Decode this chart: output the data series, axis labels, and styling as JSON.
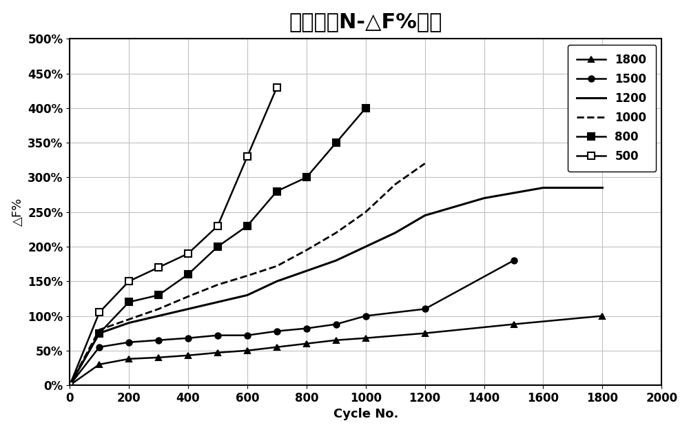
{
  "title": "标准样品N-△F%趋势",
  "xlabel": "Cycle No.",
  "ylabel": "△F%",
  "xlim": [
    0,
    2000
  ],
  "ylim": [
    0,
    5.0
  ],
  "ytick_labels": [
    "0%",
    "50%",
    "100%",
    "150%",
    "200%",
    "250%",
    "300%",
    "350%",
    "400%",
    "450%",
    "500%"
  ],
  "ytick_values": [
    0.0,
    0.5,
    1.0,
    1.5,
    2.0,
    2.5,
    3.0,
    3.5,
    4.0,
    4.5,
    5.0
  ],
  "xtick_values": [
    0,
    200,
    400,
    600,
    800,
    1000,
    1200,
    1400,
    1600,
    1800,
    2000
  ],
  "series": [
    {
      "label": "1800",
      "x": [
        0,
        100,
        200,
        300,
        400,
        500,
        600,
        700,
        800,
        900,
        1000,
        1200,
        1500,
        1800
      ],
      "y": [
        0,
        0.3,
        0.38,
        0.4,
        0.43,
        0.47,
        0.5,
        0.55,
        0.6,
        0.65,
        0.68,
        0.75,
        0.88,
        1.0
      ],
      "linestyle": "solid",
      "marker": "^",
      "markersize": 6,
      "linewidth": 1.8,
      "color": "#000000",
      "fillstyle": "full"
    },
    {
      "label": "1500",
      "x": [
        0,
        100,
        200,
        300,
        400,
        500,
        600,
        700,
        800,
        900,
        1000,
        1200,
        1500
      ],
      "y": [
        0,
        0.55,
        0.62,
        0.65,
        0.68,
        0.72,
        0.72,
        0.78,
        0.82,
        0.88,
        1.0,
        1.1,
        1.8
      ],
      "linestyle": "solid",
      "marker": "o",
      "markersize": 6,
      "linewidth": 1.8,
      "color": "#000000",
      "fillstyle": "full"
    },
    {
      "label": "1200",
      "x": [
        0,
        100,
        200,
        300,
        400,
        500,
        600,
        700,
        800,
        900,
        1000,
        1100,
        1200,
        1400,
        1600,
        1800
      ],
      "y": [
        0,
        0.75,
        0.9,
        1.0,
        1.1,
        1.2,
        1.3,
        1.5,
        1.65,
        1.8,
        2.0,
        2.2,
        2.45,
        2.7,
        2.85,
        2.85
      ],
      "linestyle": "solid",
      "marker": null,
      "markersize": 0,
      "linewidth": 2.2,
      "color": "#000000",
      "fillstyle": "full"
    },
    {
      "label": "1000",
      "x": [
        0,
        100,
        200,
        300,
        400,
        500,
        600,
        700,
        800,
        900,
        1000,
        1100,
        1200
      ],
      "y": [
        0,
        0.8,
        0.95,
        1.1,
        1.28,
        1.45,
        1.58,
        1.72,
        1.95,
        2.2,
        2.5,
        2.9,
        3.2
      ],
      "linestyle": "dashed",
      "marker": null,
      "markersize": 0,
      "linewidth": 2.0,
      "color": "#000000",
      "fillstyle": "full"
    },
    {
      "label": "800",
      "x": [
        0,
        100,
        200,
        300,
        400,
        500,
        600,
        700,
        800,
        900,
        1000
      ],
      "y": [
        0,
        0.75,
        1.2,
        1.3,
        1.6,
        2.0,
        2.3,
        2.8,
        3.0,
        3.5,
        4.0
      ],
      "linestyle": "solid",
      "marker": "s",
      "markersize": 7,
      "linewidth": 1.8,
      "color": "#000000",
      "fillstyle": "full"
    },
    {
      "label": "500",
      "x": [
        0,
        100,
        200,
        300,
        400,
        500,
        600,
        700
      ],
      "y": [
        0,
        1.05,
        1.5,
        1.7,
        1.9,
        2.3,
        3.3,
        4.3
      ],
      "linestyle": "solid",
      "marker": "s",
      "markersize": 7,
      "linewidth": 1.8,
      "color": "#000000",
      "fillstyle": "none"
    }
  ],
  "background_color": "#ffffff",
  "plot_bg_color": "#ffffff",
  "grid_color": "#c0c0c0",
  "title_fontsize": 22,
  "axis_label_fontsize": 13,
  "tick_fontsize": 12,
  "legend_fontsize": 12
}
